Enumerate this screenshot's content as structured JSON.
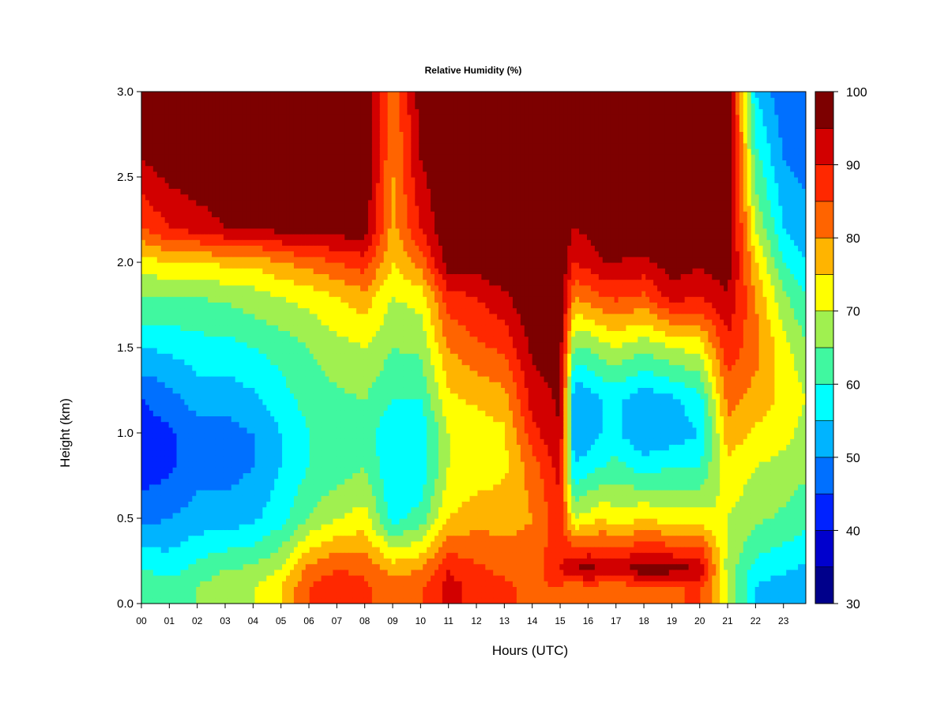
{
  "chart_data": {
    "type": "heatmap",
    "title": "Relative Humidity (%)",
    "xlabel": "Hours (UTC)",
    "ylabel": "Height (km)",
    "x_ticks": [
      "00",
      "01",
      "02",
      "03",
      "04",
      "05",
      "06",
      "07",
      "08",
      "09",
      "10",
      "11",
      "12",
      "13",
      "14",
      "15",
      "16",
      "17",
      "18",
      "19",
      "20",
      "21",
      "22",
      "23"
    ],
    "y_ticks": [
      "0.0",
      "0.5",
      "1.0",
      "1.5",
      "2.0",
      "2.5",
      "3.0"
    ],
    "xlim": [
      0,
      23.8
    ],
    "ylim": [
      0,
      3.0
    ],
    "colorbar": {
      "ticks": [
        "30",
        "40",
        "50",
        "60",
        "70",
        "80",
        "90",
        "100"
      ],
      "range": [
        30,
        100
      ],
      "step": 5,
      "levels": [
        {
          "from": 30,
          "to": 35,
          "color": "#00008b"
        },
        {
          "from": 35,
          "to": 40,
          "color": "#0000cd"
        },
        {
          "from": 40,
          "to": 45,
          "color": "#0022ff"
        },
        {
          "from": 45,
          "to": 50,
          "color": "#0070ff"
        },
        {
          "from": 50,
          "to": 55,
          "color": "#00b4ff"
        },
        {
          "from": 55,
          "to": 60,
          "color": "#00ffff"
        },
        {
          "from": 60,
          "to": 65,
          "color": "#40f8a0"
        },
        {
          "from": 65,
          "to": 70,
          "color": "#a0f050"
        },
        {
          "from": 70,
          "to": 75,
          "color": "#ffff00"
        },
        {
          "from": 75,
          "to": 80,
          "color": "#ffb400"
        },
        {
          "from": 80,
          "to": 85,
          "color": "#ff6400"
        },
        {
          "from": 85,
          "to": 90,
          "color": "#ff2800"
        },
        {
          "from": 90,
          "to": 95,
          "color": "#d20000"
        },
        {
          "from": 95,
          "to": 100,
          "color": "#7d0000"
        }
      ]
    },
    "field": {
      "height_km": [
        0.1,
        0.2,
        0.5,
        0.8,
        1.0,
        1.2,
        1.5,
        1.8,
        2.0,
        2.2,
        2.6,
        3.0
      ],
      "columns": [
        {
          "hour": 0.0,
          "rh": [
            65,
            60,
            48,
            42,
            42,
            45,
            55,
            65,
            72,
            85,
            95,
            100
          ]
        },
        {
          "hour": 1.0,
          "rh": [
            62,
            58,
            50,
            44,
            44,
            48,
            56,
            65,
            75,
            90,
            98,
            100
          ]
        },
        {
          "hour": 2.0,
          "rh": [
            65,
            62,
            52,
            48,
            48,
            52,
            58,
            65,
            75,
            92,
            100,
            100
          ]
        },
        {
          "hour": 3.0,
          "rh": [
            68,
            65,
            52,
            48,
            48,
            52,
            58,
            66,
            76,
            95,
            100,
            100
          ]
        },
        {
          "hour": 4.0,
          "rh": [
            70,
            66,
            54,
            50,
            50,
            54,
            60,
            68,
            76,
            95,
            100,
            100
          ]
        },
        {
          "hour": 5.0,
          "rh": [
            75,
            70,
            58,
            55,
            55,
            58,
            62,
            70,
            80,
            97,
            100,
            100
          ]
        },
        {
          "hour": 6.0,
          "rh": [
            85,
            82,
            65,
            60,
            60,
            62,
            65,
            72,
            82,
            98,
            100,
            100
          ]
        },
        {
          "hour": 7.0,
          "rh": [
            88,
            85,
            70,
            62,
            62,
            64,
            68,
            75,
            85,
            98,
            100,
            100
          ]
        },
        {
          "hour": 8.0,
          "rh": [
            86,
            84,
            72,
            65,
            62,
            65,
            70,
            78,
            88,
            98,
            100,
            100
          ]
        },
        {
          "hour": 9.0,
          "rh": [
            82,
            78,
            58,
            55,
            56,
            60,
            65,
            70,
            75,
            78,
            80,
            80
          ]
        },
        {
          "hour": 10.0,
          "rh": [
            84,
            80,
            62,
            56,
            56,
            60,
            66,
            72,
            82,
            90,
            95,
            98
          ]
        },
        {
          "hour": 11.0,
          "rh": [
            92,
            90,
            75,
            70,
            70,
            74,
            80,
            88,
            98,
            100,
            100,
            100
          ]
        },
        {
          "hour": 12.0,
          "rh": [
            88,
            86,
            78,
            72,
            72,
            76,
            84,
            90,
            98,
            100,
            100,
            100
          ]
        },
        {
          "hour": 13.0,
          "rh": [
            86,
            84,
            78,
            74,
            74,
            78,
            86,
            94,
            100,
            100,
            100,
            100
          ]
        },
        {
          "hour": 14.0,
          "rh": [
            84,
            82,
            80,
            82,
            88,
            92,
            96,
            100,
            100,
            100,
            100,
            100
          ]
        },
        {
          "hour": 15.0,
          "rh": [
            85,
            90,
            88,
            92,
            95,
            96,
            98,
            100,
            100,
            100,
            100,
            100
          ]
        },
        {
          "hour": 15.5,
          "rh": [
            80,
            96,
            70,
            55,
            50,
            50,
            65,
            80,
            90,
            95,
            100,
            100
          ]
        },
        {
          "hour": 16.0,
          "rh": [
            85,
            97,
            72,
            58,
            52,
            52,
            65,
            82,
            92,
            96,
            100,
            100
          ]
        },
        {
          "hour": 16.5,
          "rh": [
            82,
            95,
            75,
            60,
            55,
            55,
            68,
            85,
            95,
            98,
            100,
            100
          ]
        },
        {
          "hour": 17.0,
          "rh": [
            82,
            94,
            72,
            62,
            56,
            56,
            70,
            86,
            95,
            98,
            100,
            100
          ]
        },
        {
          "hour": 18.0,
          "rh": [
            85,
            98,
            75,
            58,
            50,
            52,
            66,
            84,
            94,
            98,
            100,
            100
          ]
        },
        {
          "hour": 19.0,
          "rh": [
            84,
            97,
            72,
            60,
            52,
            54,
            70,
            92,
            98,
            100,
            100,
            100
          ]
        },
        {
          "hour": 20.0,
          "rh": [
            86,
            96,
            72,
            60,
            55,
            58,
            72,
            90,
            96,
            98,
            100,
            100
          ]
        },
        {
          "hour": 21.0,
          "rh": [
            70,
            68,
            70,
            74,
            78,
            82,
            88,
            95,
            98,
            100,
            100,
            100
          ]
        },
        {
          "hour": 22.0,
          "rh": [
            55,
            58,
            66,
            70,
            74,
            78,
            82,
            80,
            76,
            70,
            62,
            55
          ]
        },
        {
          "hour": 23.0,
          "rh": [
            52,
            56,
            64,
            68,
            72,
            74,
            72,
            66,
            60,
            55,
            50,
            46
          ]
        },
        {
          "hour": 23.8,
          "rh": [
            50,
            54,
            62,
            66,
            68,
            70,
            66,
            60,
            55,
            52,
            48,
            45
          ]
        }
      ]
    }
  }
}
